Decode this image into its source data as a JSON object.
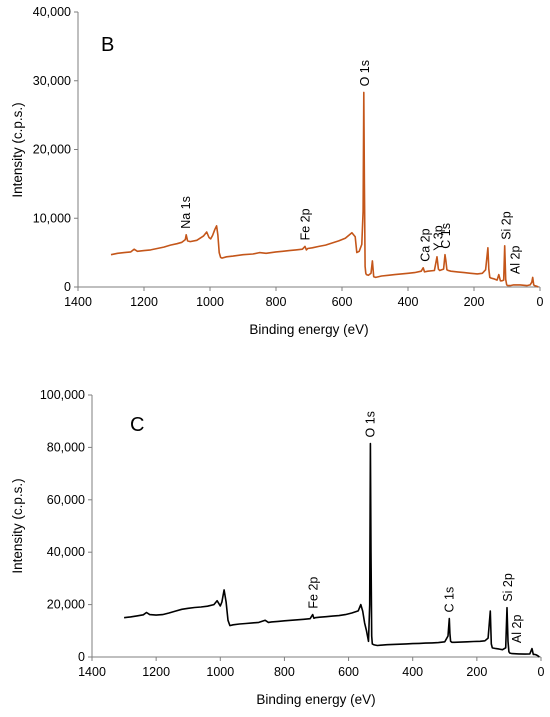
{
  "chart_data": [
    {
      "type": "line",
      "panel_label": "B",
      "xlabel": "Binding energy (eV)",
      "ylabel": "Intensity (c.p.s.)",
      "xlim": [
        1400,
        0
      ],
      "ylim": [
        0,
        40000
      ],
      "x_reversed": true,
      "xticks": [
        1400,
        1200,
        1000,
        800,
        600,
        400,
        200,
        0
      ],
      "yticks": [
        0,
        10000,
        20000,
        30000,
        40000
      ],
      "ytick_labels": [
        "0",
        "10,000",
        "20,000",
        "30,000",
        "40,000"
      ],
      "grid": false,
      "legend": "none",
      "color": "#c4561a",
      "series": [
        {
          "x": [
            1300,
            1280,
            1260,
            1240,
            1230,
            1220,
            1200,
            1180,
            1160,
            1140,
            1120,
            1100,
            1085,
            1075,
            1072,
            1068,
            1060,
            1040,
            1020,
            1010,
            1003,
            998,
            992,
            985,
            980,
            976,
            972,
            968,
            964,
            950,
            930,
            900,
            870,
            850,
            830,
            800,
            780,
            760,
            740,
            720,
            712,
            708,
            704,
            690,
            670,
            650,
            630,
            610,
            590,
            570,
            560,
            555,
            548,
            540,
            536,
            534,
            532,
            530,
            528,
            526,
            520,
            512,
            508,
            504,
            498,
            480,
            460,
            440,
            420,
            400,
            380,
            360,
            354,
            350,
            340,
            320,
            312,
            308,
            304,
            298,
            292,
            288,
            285,
            282,
            278,
            270,
            250,
            230,
            210,
            190,
            175,
            165,
            158,
            155,
            152,
            148,
            140,
            130,
            125,
            120,
            115,
            110,
            107,
            104,
            101,
            98,
            90,
            80,
            60,
            40,
            30,
            25,
            22,
            19,
            16,
            10,
            5
          ],
          "y": [
            4700,
            4900,
            5000,
            5100,
            5500,
            5200,
            5300,
            5400,
            5600,
            5800,
            6100,
            6300,
            6500,
            6900,
            7600,
            6700,
            6600,
            6800,
            7400,
            8000,
            7200,
            7000,
            7500,
            8400,
            8900,
            7500,
            5000,
            4300,
            4200,
            4400,
            4500,
            4700,
            4800,
            5000,
            4900,
            5100,
            5200,
            5300,
            5400,
            5500,
            5900,
            5400,
            5600,
            5700,
            5900,
            6100,
            6400,
            6700,
            7100,
            7900,
            7300,
            5000,
            5200,
            6200,
            11000,
            28300,
            15000,
            3000,
            2000,
            1800,
            1700,
            2000,
            3800,
            1500,
            1400,
            1600,
            1700,
            1800,
            1900,
            2000,
            2100,
            2300,
            2800,
            2200,
            2300,
            2400,
            4400,
            2600,
            2400,
            2500,
            2600,
            4700,
            3800,
            2500,
            2400,
            2300,
            2200,
            2100,
            2000,
            1900,
            2000,
            2500,
            5700,
            2600,
            1400,
            1300,
            1200,
            1000,
            1800,
            900,
            900,
            1000,
            6000,
            1100,
            300,
            200,
            200,
            300,
            300,
            200,
            300,
            700,
            1400,
            300,
            200,
            100,
            0
          ]
        }
      ],
      "annotations": [
        {
          "text": "O 1s",
          "x": 530,
          "y": 28300
        },
        {
          "text": "Na 1s",
          "x": 1072,
          "y": 7600
        },
        {
          "text": "Fe 2p",
          "x": 710,
          "y": 5900
        },
        {
          "text": "Ca 2p",
          "x": 347,
          "y": 2800
        },
        {
          "text": "Y 3p",
          "x": 308,
          "y": 4400
        },
        {
          "text": "C 1s",
          "x": 285,
          "y": 4700
        },
        {
          "text": "Si 2p",
          "x": 102,
          "y": 6000
        },
        {
          "text": "Al  2p",
          "x": 74,
          "y": 1000
        }
      ]
    },
    {
      "type": "line",
      "panel_label": "C",
      "xlabel": "Binding energy (eV)",
      "ylabel": "Intensity (c.p.s.)",
      "xlim": [
        1400,
        0
      ],
      "ylim": [
        0,
        100000
      ],
      "x_reversed": true,
      "xticks": [
        1400,
        1200,
        1000,
        800,
        600,
        400,
        200,
        0
      ],
      "yticks": [
        0,
        20000,
        40000,
        60000,
        80000,
        100000
      ],
      "ytick_labels": [
        "0",
        "20,000",
        "40,000",
        "60,000",
        "80,000",
        "100,000"
      ],
      "grid": false,
      "legend": "none",
      "color": "#000000",
      "series": [
        {
          "x": [
            1300,
            1280,
            1260,
            1240,
            1230,
            1220,
            1200,
            1180,
            1160,
            1140,
            1120,
            1100,
            1080,
            1060,
            1040,
            1020,
            1010,
            1000,
            995,
            988,
            982,
            976,
            970,
            960,
            940,
            920,
            900,
            880,
            860,
            850,
            840,
            820,
            800,
            780,
            760,
            740,
            720,
            712,
            708,
            704,
            690,
            670,
            650,
            630,
            610,
            590,
            570,
            562,
            556,
            550,
            544,
            538,
            534,
            532,
            530,
            528,
            526,
            520,
            510,
            500,
            490,
            480,
            460,
            440,
            420,
            400,
            380,
            360,
            340,
            320,
            300,
            290,
            286,
            284,
            282,
            278,
            270,
            250,
            230,
            210,
            190,
            175,
            165,
            158,
            155,
            152,
            148,
            140,
            130,
            120,
            110,
            106,
            103,
            100,
            97,
            90,
            70,
            50,
            35,
            28,
            24,
            20,
            15,
            10,
            5
          ],
          "y": [
            15000,
            15300,
            15700,
            16100,
            17000,
            16200,
            16000,
            16200,
            16800,
            17500,
            18200,
            18600,
            18900,
            19100,
            19400,
            20000,
            21500,
            19500,
            21000,
            25600,
            21000,
            14000,
            12000,
            12300,
            12600,
            12800,
            13000,
            13200,
            14000,
            13200,
            13400,
            13600,
            13800,
            14000,
            14200,
            14400,
            14600,
            16200,
            14800,
            15000,
            15200,
            15400,
            15600,
            15800,
            16200,
            16800,
            17600,
            20000,
            17500,
            13000,
            10000,
            6000,
            20000,
            81500,
            40000,
            8000,
            5000,
            4600,
            4400,
            4500,
            4600,
            4700,
            4800,
            4900,
            5000,
            5100,
            5200,
            5300,
            5400,
            5500,
            5800,
            8000,
            14700,
            9000,
            6000,
            5600,
            5600,
            5700,
            5800,
            5900,
            6000,
            6200,
            7200,
            17500,
            5000,
            3500,
            3400,
            3200,
            3000,
            2800,
            3500,
            18800,
            6000,
            2000,
            1500,
            1300,
            1200,
            1100,
            1200,
            3200,
            1000,
            1000,
            800,
            500,
            0
          ]
        }
      ],
      "annotations": [
        {
          "text": "O 1s",
          "x": 532,
          "y": 81500
        },
        {
          "text": "Fe 2p",
          "x": 710,
          "y": 16200
        },
        {
          "text": "C 1s",
          "x": 285,
          "y": 14700
        },
        {
          "text": "Si 2p",
          "x": 103,
          "y": 18800
        },
        {
          "text": "Al  2p",
          "x": 75,
          "y": 3000
        }
      ]
    }
  ]
}
